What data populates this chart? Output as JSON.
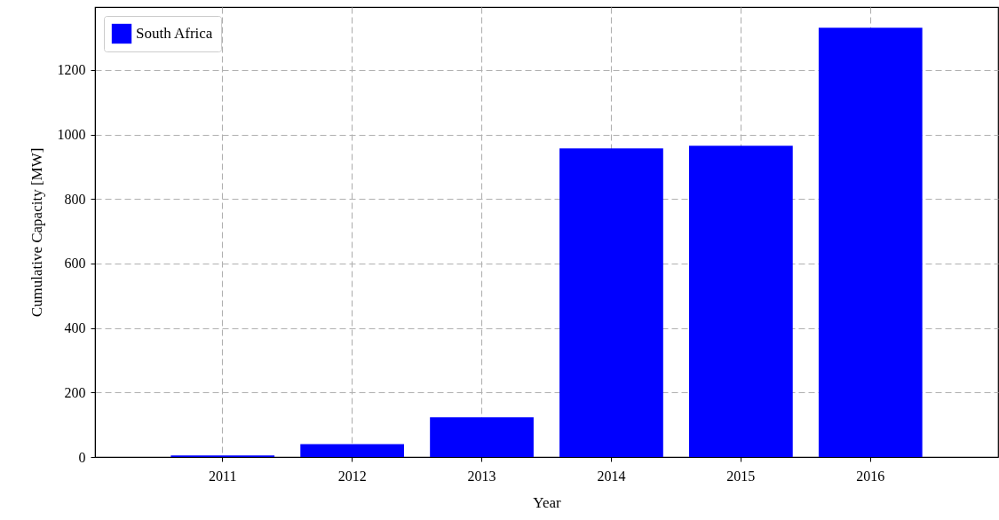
{
  "chart_data": {
    "type": "bar",
    "xlabel": "Year",
    "ylabel": "Cumulative Capacity [MW]",
    "categories": [
      "2011",
      "2012",
      "2013",
      "2014",
      "2015",
      "2016"
    ],
    "series": [
      {
        "name": "South Africa",
        "color": "#0000ff",
        "values": [
          5,
          40,
          123,
          957,
          965,
          1331
        ]
      }
    ],
    "ylim": [
      0,
      1395
    ],
    "yticks": [
      0,
      200,
      400,
      600,
      800,
      1000,
      1200
    ],
    "grid": true,
    "legend": "top left"
  }
}
